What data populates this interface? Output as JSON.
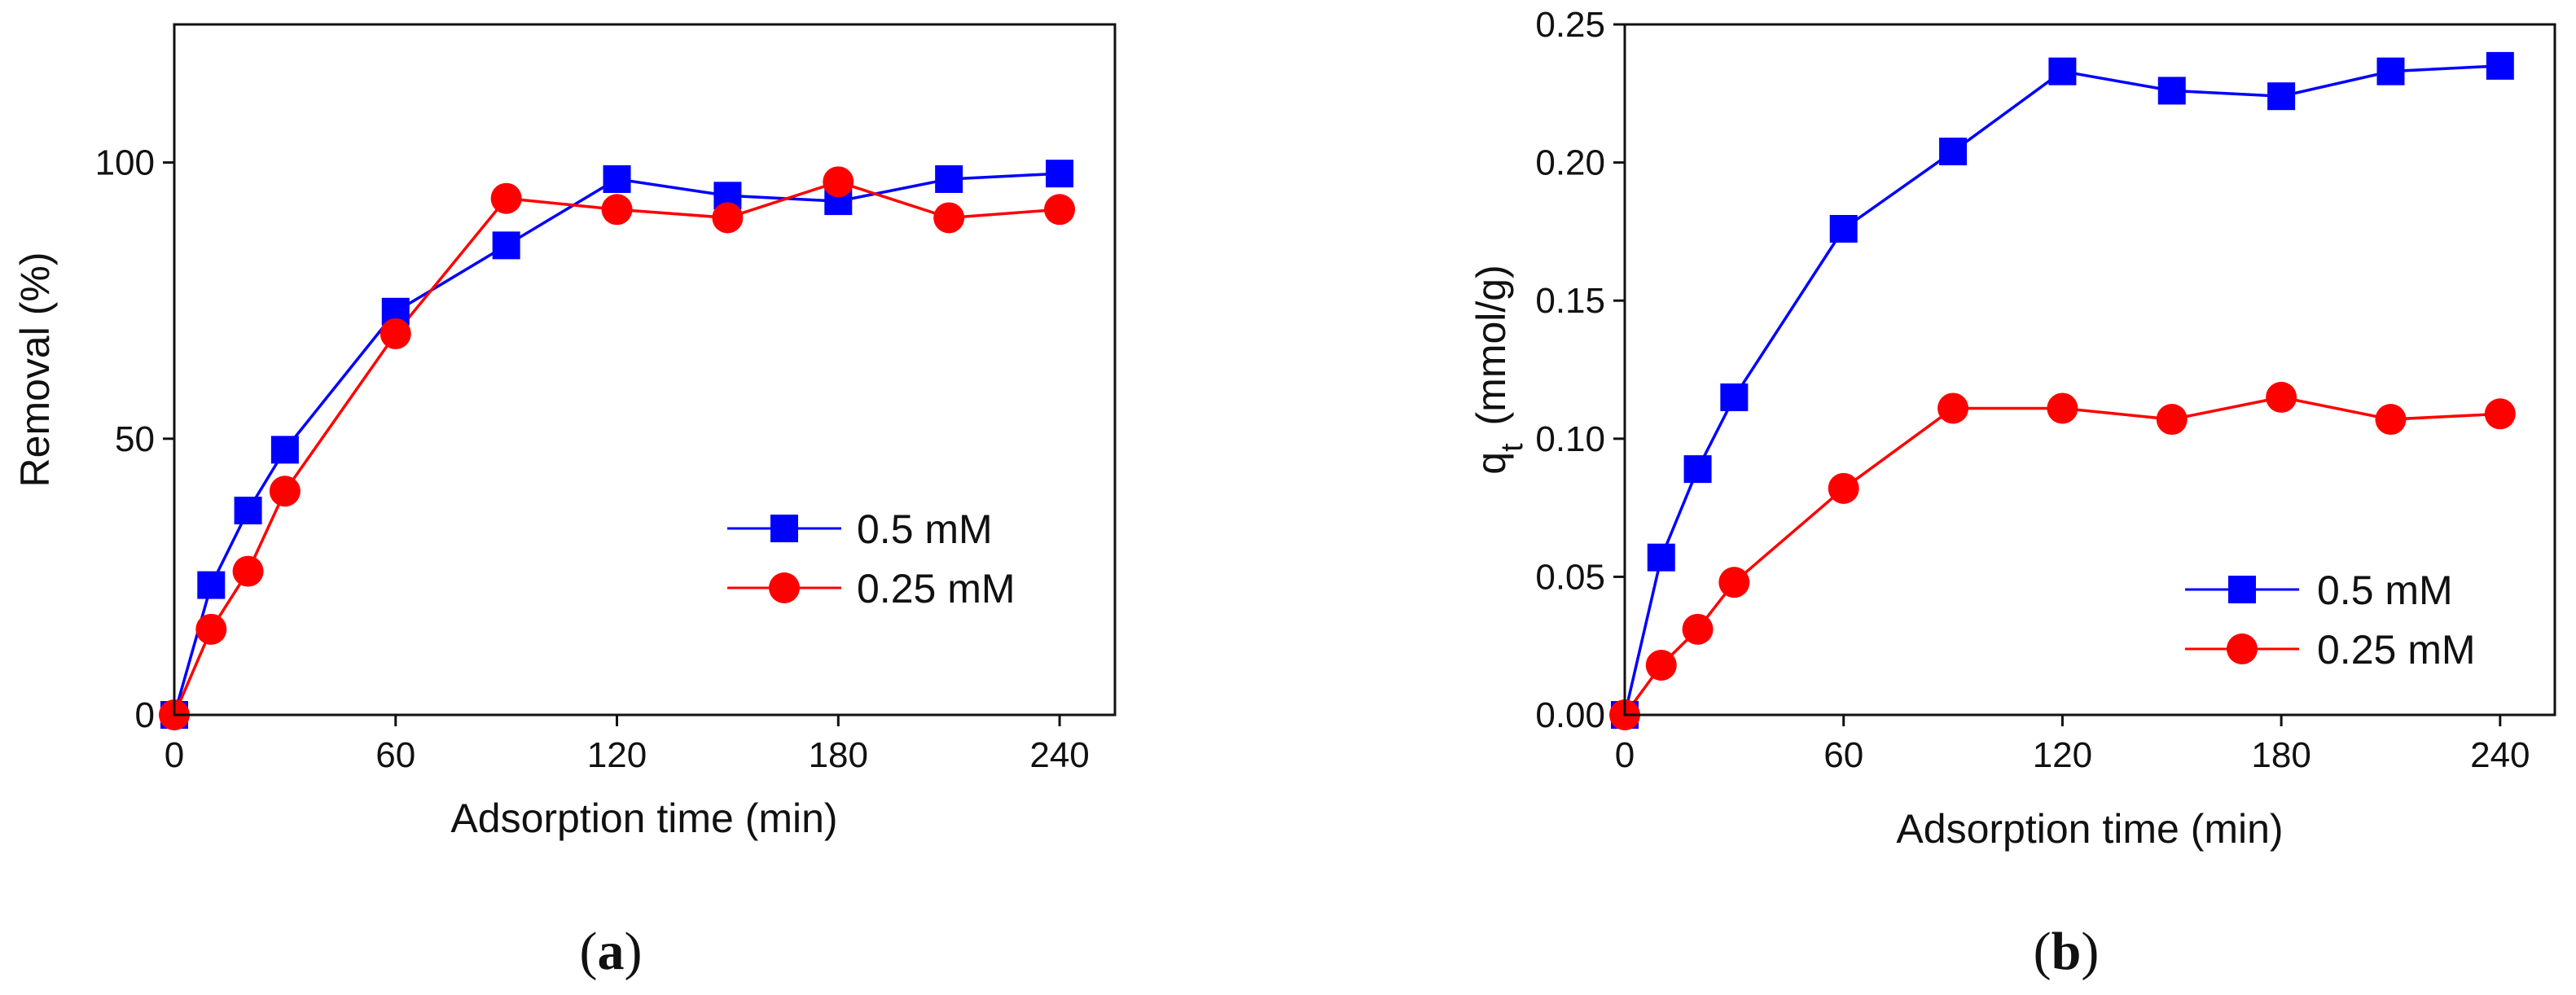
{
  "chart_data": [
    {
      "type": "line",
      "panel_label": "a",
      "title": "",
      "xlabel": "Adsorption time (min)",
      "ylabel": "Removal (%)",
      "xlim": [
        0,
        255
      ],
      "ylim": [
        0,
        125
      ],
      "xticks": [
        0,
        60,
        120,
        180,
        240
      ],
      "yticks": [
        0,
        50,
        100
      ],
      "legend_position": "right-center",
      "x": [
        0,
        10,
        20,
        30,
        60,
        90,
        120,
        150,
        180,
        210,
        240
      ],
      "series": [
        {
          "name": "0.5 mM",
          "color": "#0000ff",
          "marker": "square",
          "values": [
            0,
            23.5,
            37,
            48,
            73,
            85,
            97,
            94,
            93,
            97,
            98
          ]
        },
        {
          "name": "0.25 mM",
          "color": "#ff0000",
          "marker": "circle",
          "values": [
            0,
            15.5,
            26,
            40.5,
            69,
            93.5,
            91.5,
            90,
            96.5,
            90,
            91.5
          ]
        }
      ]
    },
    {
      "type": "line",
      "panel_label": "b",
      "title": "",
      "xlabel": "Adsorption time (min)",
      "ylabel_main": "q",
      "ylabel_sub": "t",
      "ylabel_rest": " (mmol/g)",
      "xlim": [
        0,
        255
      ],
      "ylim": [
        0,
        0.25
      ],
      "xticks": [
        0,
        60,
        120,
        180,
        240
      ],
      "yticks": [
        0.0,
        0.05,
        0.1,
        0.15,
        0.2,
        0.25
      ],
      "ytick_labels": [
        "0.00",
        "0.05",
        "0.10",
        "0.15",
        "0.20",
        "0.25"
      ],
      "legend_position": "bottom-right",
      "x": [
        0,
        10,
        20,
        30,
        60,
        90,
        120,
        150,
        180,
        210,
        240
      ],
      "series": [
        {
          "name": "0.5 mM",
          "color": "#0000ff",
          "marker": "square",
          "values": [
            0,
            0.057,
            0.089,
            0.115,
            0.176,
            0.204,
            0.233,
            0.226,
            0.224,
            0.233,
            0.235
          ]
        },
        {
          "name": "0.25 mM",
          "color": "#ff0000",
          "marker": "circle",
          "values": [
            0,
            0.018,
            0.031,
            0.048,
            0.082,
            0.111,
            0.111,
            0.107,
            0.115,
            0.107,
            0.109
          ]
        }
      ]
    }
  ]
}
